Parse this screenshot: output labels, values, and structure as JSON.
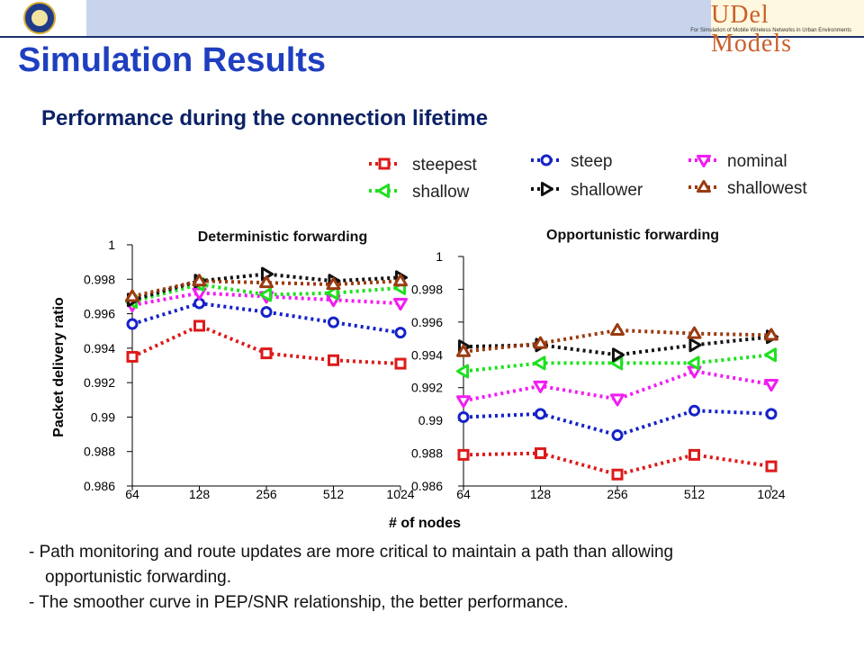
{
  "header": {
    "logo_right_text": "UDel Models",
    "logo_right_subtext": "For Simulation of Mobile Wireless Networks in Urban Environments",
    "left_logo_icon": "university-seal-icon"
  },
  "slide": {
    "title": "Simulation Results",
    "subtitle": "Performance during the connection lifetime",
    "bullets": [
      "- Path monitoring and route updates are more critical to maintain a path than allowing",
      "opportunistic forwarding.",
      "- The smoother curve in PEP/SNR relationship, the better performance."
    ]
  },
  "chart_data": {
    "type": "line",
    "shared_ylabel": "Packet delivery ratio",
    "shared_xlabel": "# of nodes",
    "legend_placement": "top-center",
    "categories": [
      "64",
      "128",
      "256",
      "512",
      "1024"
    ],
    "series_styles": [
      {
        "name": "steepest",
        "color": "#dd1a1a",
        "marker": "square"
      },
      {
        "name": "steep",
        "color": "#1522c8",
        "marker": "circle"
      },
      {
        "name": "nominal",
        "color": "#f21cf2",
        "marker": "triangle-down"
      },
      {
        "name": "shallow",
        "color": "#1ee01e",
        "marker": "triangle-left"
      },
      {
        "name": "shallower",
        "color": "#111111",
        "marker": "triangle-right"
      },
      {
        "name": "shallowest",
        "color": "#9a3b10",
        "marker": "triangle-up"
      }
    ],
    "panels": [
      {
        "title": "Deterministic forwarding",
        "ylim": [
          0.986,
          1.0
        ],
        "yticks": [
          "0.986",
          "0.988",
          "0.99",
          "0.992",
          "0.994",
          "0.996",
          "0.998",
          "1"
        ],
        "series": [
          {
            "name": "steepest",
            "values": [
              0.9935,
              0.9953,
              0.9937,
              0.9933,
              0.9931
            ]
          },
          {
            "name": "steep",
            "values": [
              0.9954,
              0.9966,
              0.9961,
              0.9955,
              0.9949
            ]
          },
          {
            "name": "nominal",
            "values": [
              0.9965,
              0.9972,
              0.997,
              0.9968,
              0.9966
            ]
          },
          {
            "name": "shallow",
            "values": [
              0.9967,
              0.9977,
              0.9971,
              0.9972,
              0.9975
            ]
          },
          {
            "name": "shallower",
            "values": [
              0.9968,
              0.9979,
              0.9983,
              0.9979,
              0.9981
            ]
          },
          {
            "name": "shallowest",
            "values": [
              0.997,
              0.9979,
              0.9978,
              0.9977,
              0.9979
            ]
          }
        ]
      },
      {
        "title": "Opportunistic forwarding",
        "ylim": [
          0.986,
          1.0
        ],
        "yticks": [
          "0.986",
          "0.988",
          "0.99",
          "0.992",
          "0.994",
          "0.996",
          "0.998",
          "1"
        ],
        "series": [
          {
            "name": "steepest",
            "values": [
              0.9879,
              0.988,
              0.9867,
              0.9879,
              0.9872
            ]
          },
          {
            "name": "steep",
            "values": [
              0.9902,
              0.9904,
              0.9891,
              0.9906,
              0.9904
            ]
          },
          {
            "name": "nominal",
            "values": [
              0.9912,
              0.9921,
              0.9913,
              0.993,
              0.9922
            ]
          },
          {
            "name": "shallow",
            "values": [
              0.993,
              0.9935,
              0.9935,
              0.9935,
              0.994
            ]
          },
          {
            "name": "shallower",
            "values": [
              0.9945,
              0.9946,
              0.994,
              0.9946,
              0.9951
            ]
          },
          {
            "name": "shallowest",
            "values": [
              0.9942,
              0.9947,
              0.9955,
              0.9953,
              0.9952
            ]
          }
        ]
      }
    ]
  }
}
